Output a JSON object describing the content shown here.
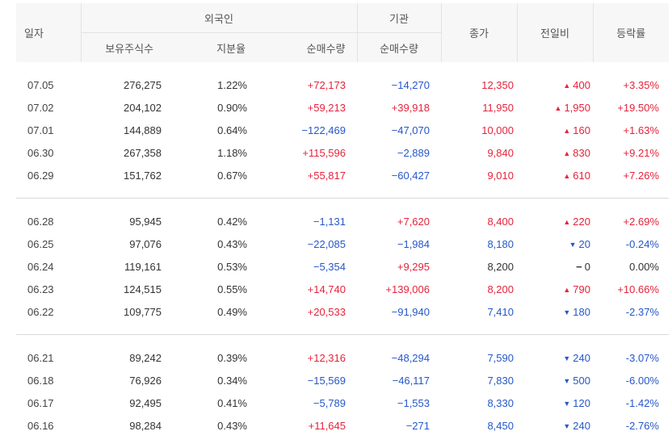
{
  "header": {
    "date": "일자",
    "foreign": "외국인",
    "institution": "기관",
    "holdings": "보유주식수",
    "ratio": "지분율",
    "foreign_net": "순매수량",
    "inst_net": "순매수량",
    "close": "종가",
    "diff": "전일비",
    "rate": "등락률"
  },
  "colors": {
    "up": "#e4233b",
    "down": "#2657c9",
    "flat": "#333333"
  },
  "icons": {
    "up": "▲",
    "down": "▼",
    "flat": "−"
  },
  "groups": [
    [
      {
        "date": "07.05",
        "holdings": "276,275",
        "ratio": "1.22%",
        "foreign_net": "+72,173",
        "inst_net": "−14,270",
        "close": "12,350",
        "diff": "400",
        "dir": "up",
        "rate": "+3.35%"
      },
      {
        "date": "07.02",
        "holdings": "204,102",
        "ratio": "0.90%",
        "foreign_net": "+59,213",
        "inst_net": "+39,918",
        "close": "11,950",
        "diff": "1,950",
        "dir": "up",
        "rate": "+19.50%"
      },
      {
        "date": "07.01",
        "holdings": "144,889",
        "ratio": "0.64%",
        "foreign_net": "−122,469",
        "inst_net": "−47,070",
        "close": "10,000",
        "diff": "160",
        "dir": "up",
        "rate": "+1.63%"
      },
      {
        "date": "06.30",
        "holdings": "267,358",
        "ratio": "1.18%",
        "foreign_net": "+115,596",
        "inst_net": "−2,889",
        "close": "9,840",
        "diff": "830",
        "dir": "up",
        "rate": "+9.21%"
      },
      {
        "date": "06.29",
        "holdings": "151,762",
        "ratio": "0.67%",
        "foreign_net": "+55,817",
        "inst_net": "−60,427",
        "close": "9,010",
        "diff": "610",
        "dir": "up",
        "rate": "+7.26%"
      }
    ],
    [
      {
        "date": "06.28",
        "holdings": "95,945",
        "ratio": "0.42%",
        "foreign_net": "−1,131",
        "inst_net": "+7,620",
        "close": "8,400",
        "diff": "220",
        "dir": "up",
        "rate": "+2.69%"
      },
      {
        "date": "06.25",
        "holdings": "97,076",
        "ratio": "0.43%",
        "foreign_net": "−22,085",
        "inst_net": "−1,984",
        "close": "8,180",
        "diff": "20",
        "dir": "down",
        "rate": "-0.24%"
      },
      {
        "date": "06.24",
        "holdings": "119,161",
        "ratio": "0.53%",
        "foreign_net": "−5,354",
        "inst_net": "+9,295",
        "close": "8,200",
        "diff": "0",
        "dir": "flat",
        "rate": "0.00%"
      },
      {
        "date": "06.23",
        "holdings": "124,515",
        "ratio": "0.55%",
        "foreign_net": "+14,740",
        "inst_net": "+139,006",
        "close": "8,200",
        "diff": "790",
        "dir": "up",
        "rate": "+10.66%"
      },
      {
        "date": "06.22",
        "holdings": "109,775",
        "ratio": "0.49%",
        "foreign_net": "+20,533",
        "inst_net": "−91,940",
        "close": "7,410",
        "diff": "180",
        "dir": "down",
        "rate": "-2.37%"
      }
    ],
    [
      {
        "date": "06.21",
        "holdings": "89,242",
        "ratio": "0.39%",
        "foreign_net": "+12,316",
        "inst_net": "−48,294",
        "close": "7,590",
        "diff": "240",
        "dir": "down",
        "rate": "-3.07%"
      },
      {
        "date": "06.18",
        "holdings": "76,926",
        "ratio": "0.34%",
        "foreign_net": "−15,569",
        "inst_net": "−46,117",
        "close": "7,830",
        "diff": "500",
        "dir": "down",
        "rate": "-6.00%"
      },
      {
        "date": "06.17",
        "holdings": "92,495",
        "ratio": "0.41%",
        "foreign_net": "−5,789",
        "inst_net": "−1,553",
        "close": "8,330",
        "diff": "120",
        "dir": "down",
        "rate": "-1.42%"
      },
      {
        "date": "06.16",
        "holdings": "98,284",
        "ratio": "0.43%",
        "foreign_net": "+11,645",
        "inst_net": "−271",
        "close": "8,450",
        "diff": "240",
        "dir": "down",
        "rate": "-2.76%"
      }
    ]
  ]
}
